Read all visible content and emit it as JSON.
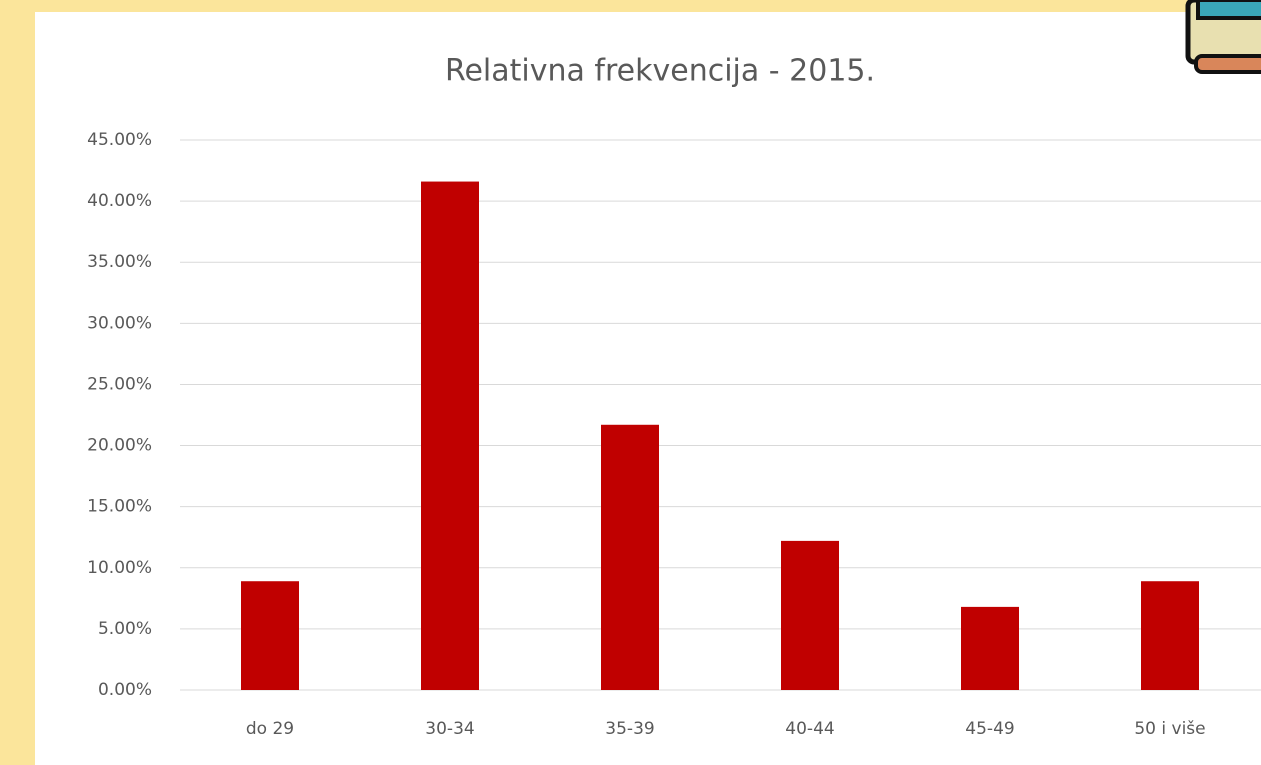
{
  "chart_data": {
    "type": "bar",
    "title": "Relativna frekvencija - 2015.",
    "categories": [
      "do 29",
      "30-34",
      "35-39",
      "40-44",
      "45-49",
      "50 i više"
    ],
    "values": [
      8.9,
      41.6,
      21.7,
      12.2,
      6.8,
      8.9
    ],
    "color": "#c00000",
    "ylim": [
      0,
      45
    ],
    "yticks": [
      {
        "value": 0,
        "label": "0.00%"
      },
      {
        "value": 5,
        "label": "5.00%"
      },
      {
        "value": 10,
        "label": "10.00%"
      },
      {
        "value": 15,
        "label": "15.00%"
      },
      {
        "value": 20,
        "label": "20.00%"
      },
      {
        "value": 25,
        "label": "25.00%"
      },
      {
        "value": 30,
        "label": "30.00%"
      },
      {
        "value": 35,
        "label": "35.00%"
      },
      {
        "value": 40,
        "label": "40.00%"
      },
      {
        "value": 45,
        "label": "45.00%"
      }
    ],
    "grid": true
  }
}
